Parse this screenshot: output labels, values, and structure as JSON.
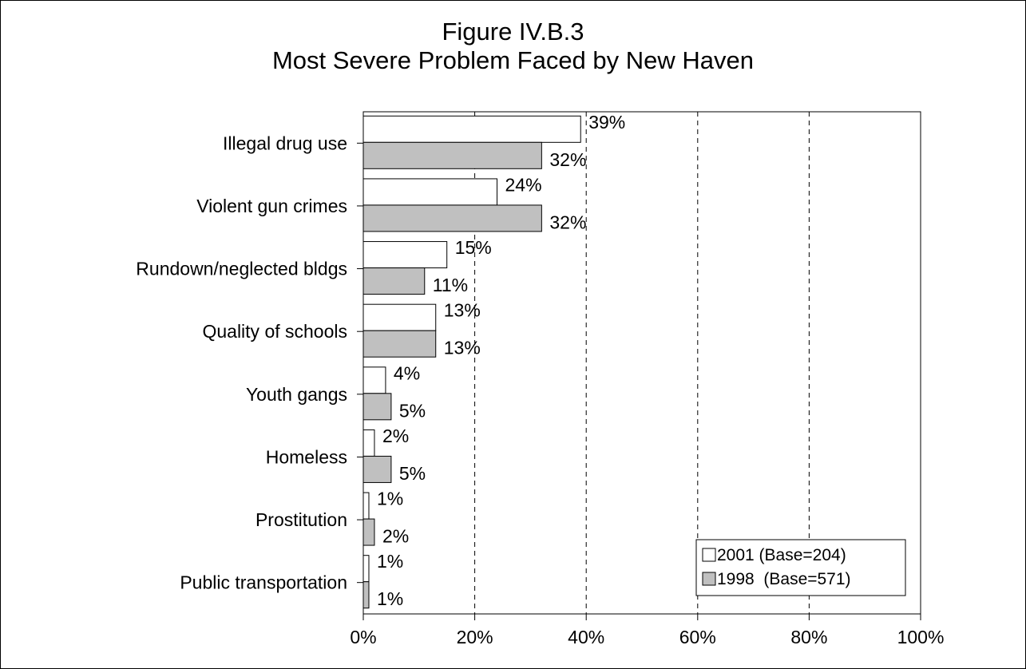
{
  "chart_data": {
    "type": "bar",
    "orientation": "horizontal",
    "title": "Figure IV.B.3",
    "subtitle": "Most Severe Problem Faced by New Haven",
    "categories": [
      "Illegal drug use",
      "Violent gun crimes",
      "Rundown/neglected bldgs",
      "Quality of schools",
      "Youth gangs",
      "Homeless",
      "Prostitution",
      "Public transportation"
    ],
    "series": [
      {
        "name": "2001 (Base=204)",
        "values": [
          39,
          24,
          15,
          13,
          4,
          2,
          1,
          1
        ],
        "labels": [
          "39%",
          "24%",
          "15%",
          "13%",
          "4%",
          "2%",
          "1%",
          "1%"
        ],
        "color": "#ffffff"
      },
      {
        "name": "1998  (Base=571)",
        "values": [
          32,
          32,
          11,
          13,
          5,
          5,
          2,
          1
        ],
        "labels": [
          "32%",
          "32%",
          "11%",
          "13%",
          "5%",
          "5%",
          "2%",
          "1%"
        ],
        "color": "#c0c0c0"
      }
    ],
    "xlim": [
      0,
      100
    ],
    "x_ticks": [
      "0%",
      "20%",
      "40%",
      "60%",
      "80%",
      "100%"
    ],
    "x_tick_values": [
      0,
      20,
      40,
      60,
      80,
      100
    ],
    "grid": "vertical dashed",
    "legend_position": "bottom-right"
  }
}
